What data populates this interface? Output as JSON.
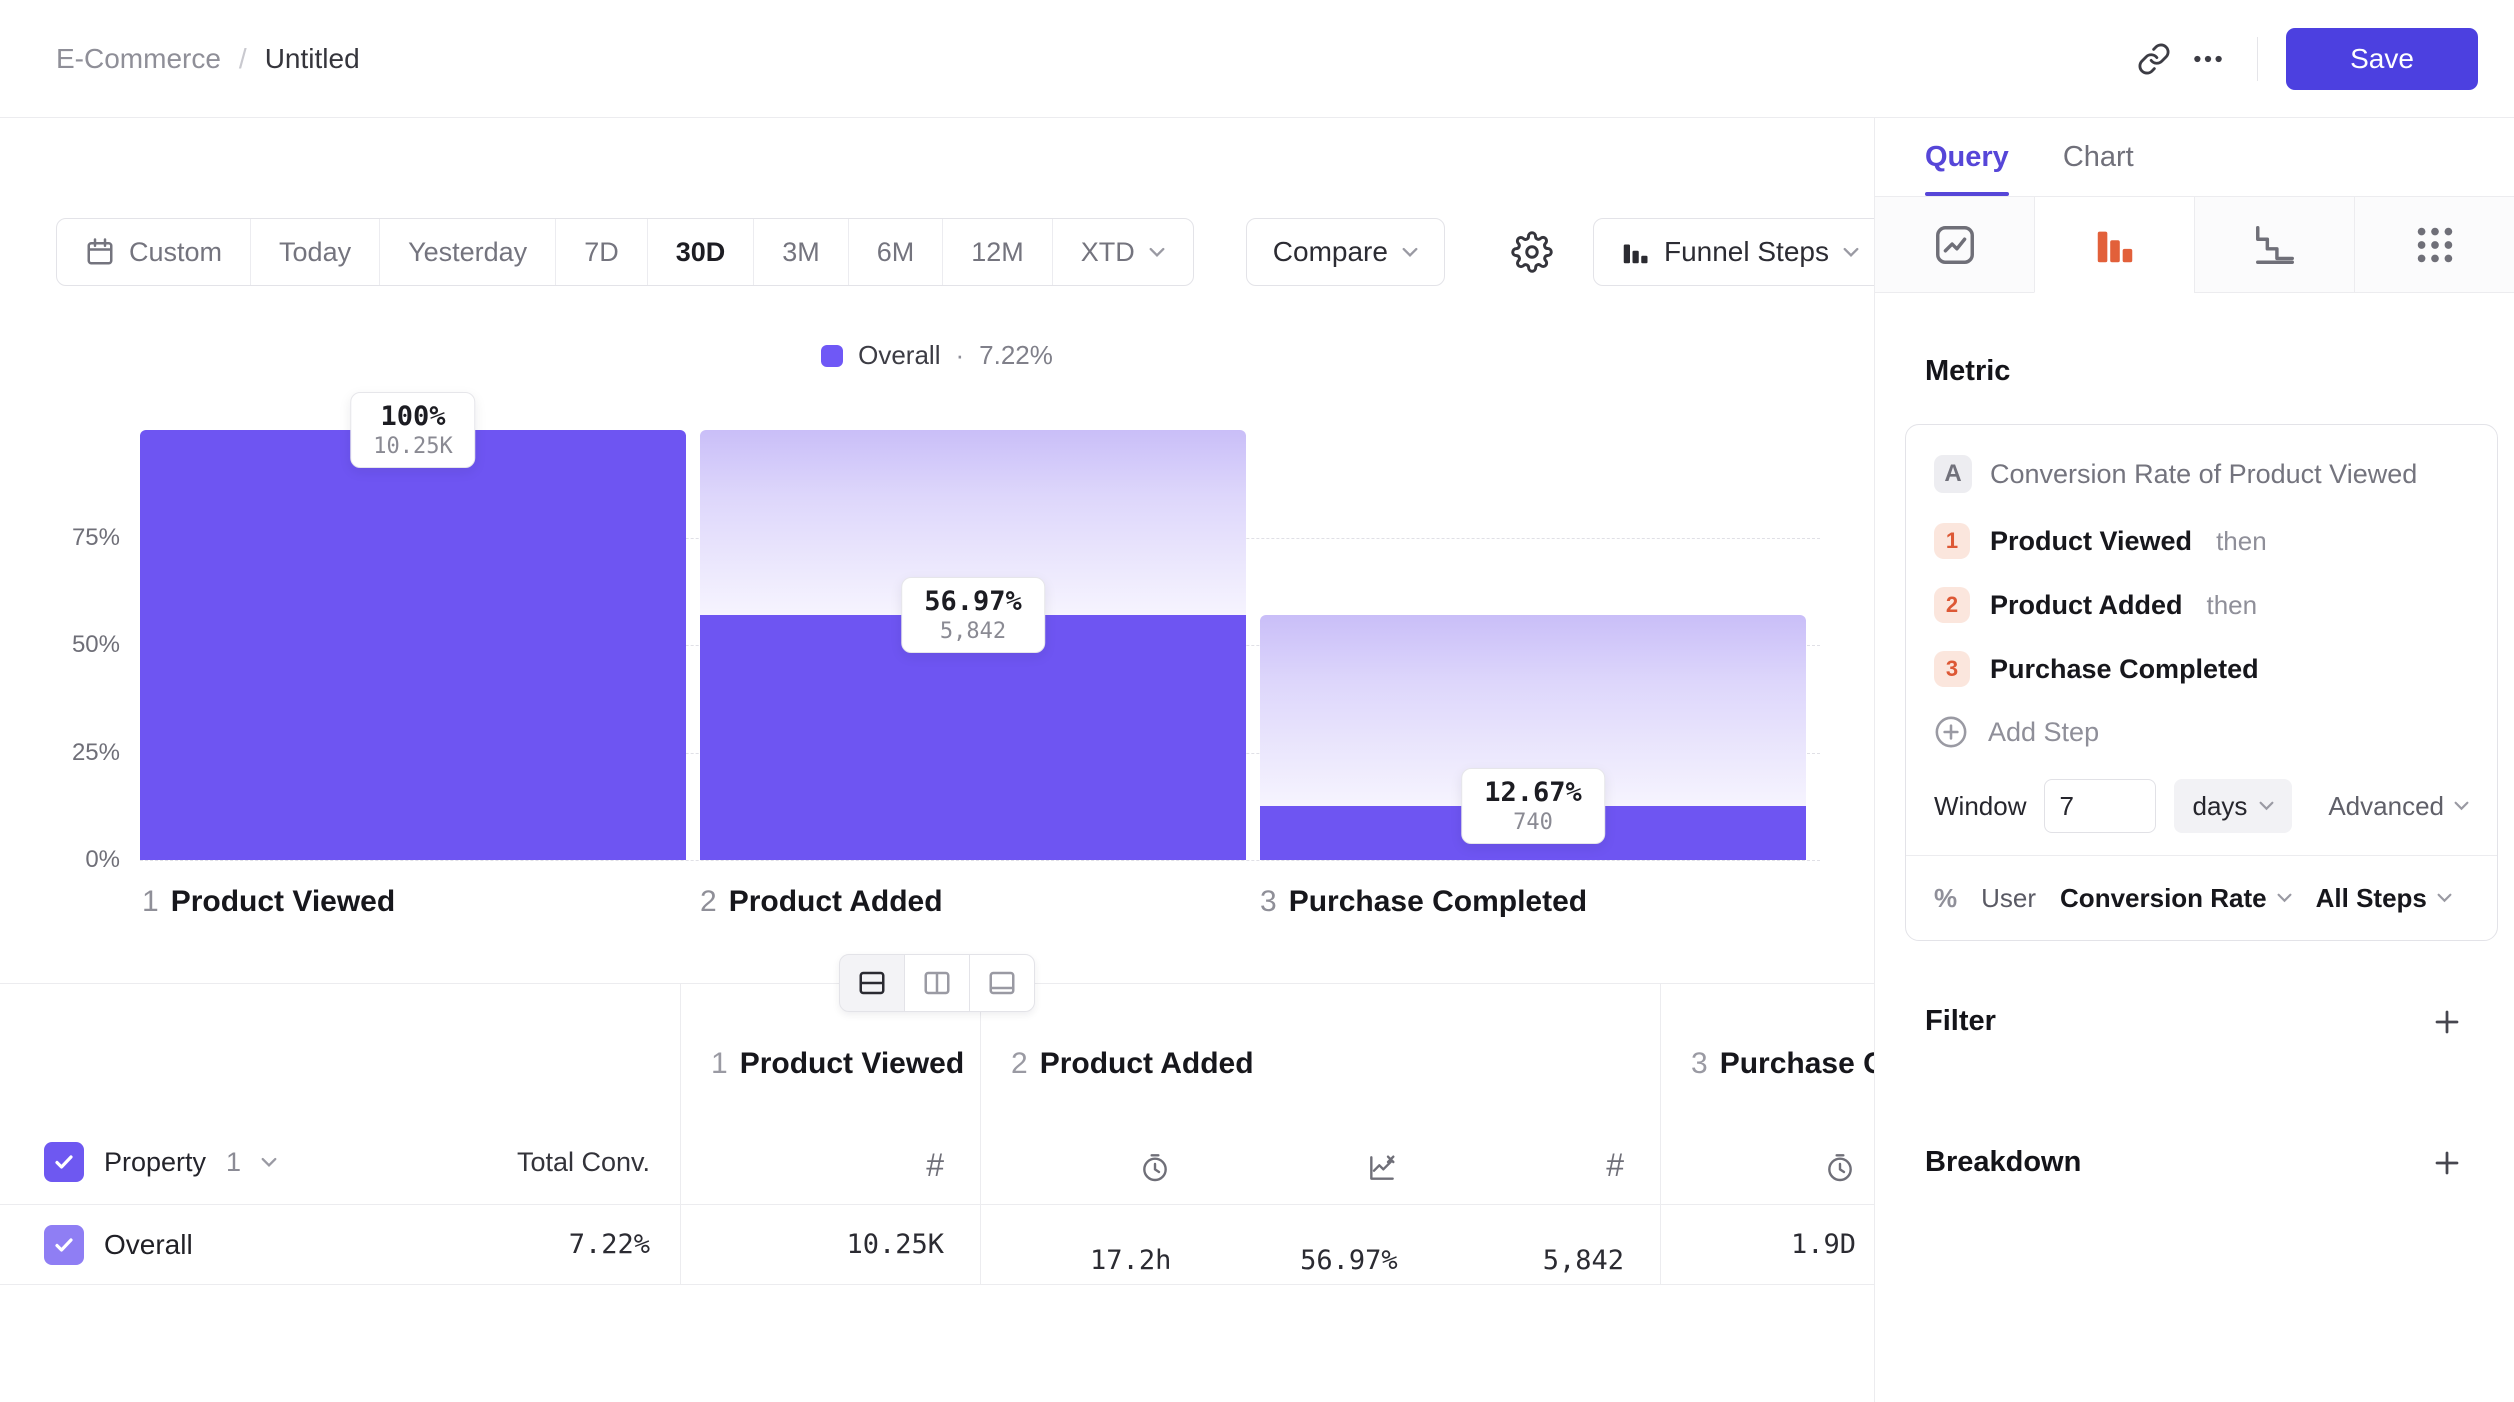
{
  "topbar": {
    "breadcrumb": {
      "parent": "E-Commerce",
      "separator": "/",
      "current": "Untitled"
    },
    "save_label": "Save"
  },
  "toolbar": {
    "ranges": [
      "Custom",
      "Today",
      "Yesterday",
      "7D",
      "30D",
      "3M",
      "6M",
      "12M",
      "XTD"
    ],
    "selected_range": "30D",
    "compare_label": "Compare",
    "view_type_label": "Funnel Steps"
  },
  "legend": {
    "label": "Overall",
    "separator": "·",
    "value": "7.22%",
    "color": "#6f58f6"
  },
  "chart_data": {
    "type": "funnel",
    "categories": [
      "Product Viewed",
      "Product Added",
      "Purchase Completed"
    ],
    "series": [
      {
        "name": "Overall",
        "conversion_pct": [
          100,
          56.97,
          12.67
        ],
        "counts": [
          10250,
          5842,
          740
        ]
      }
    ],
    "bar_labels": [
      {
        "pct": "100%",
        "count": "10.25K"
      },
      {
        "pct": "56.97%",
        "count": "5,842"
      },
      {
        "pct": "12.67%",
        "count": "740"
      }
    ],
    "x_labels": [
      {
        "num": "1",
        "name": "Product Viewed"
      },
      {
        "num": "2",
        "name": "Product Added"
      },
      {
        "num": "3",
        "name": "Purchase Completed"
      }
    ],
    "yticks": [
      "75%",
      "50%",
      "25%",
      "0%"
    ],
    "ylim": [
      0,
      100
    ],
    "grid": "dashed",
    "legend_position": "top-center"
  },
  "table": {
    "property_label": "Property",
    "property_number": "1",
    "total_conv_label": "Total Conv.",
    "step_headers": [
      {
        "num": "1",
        "name": "Product Viewed"
      },
      {
        "num": "2",
        "name": "Product Added"
      },
      {
        "num": "3",
        "name": "Purchase Completed"
      }
    ],
    "metric_icons": [
      "count",
      "time",
      "rate",
      "count",
      "time"
    ],
    "row": {
      "name": "Overall",
      "total_conv": "7.22%",
      "values": [
        "10.25K",
        "17.2h",
        "56.97%",
        "5,842",
        "1.9D"
      ]
    }
  },
  "query_panel": {
    "tabs": [
      {
        "label": "Query"
      },
      {
        "label": "Chart"
      }
    ],
    "active_tab": "Query",
    "chart_type_tabs": [
      "insights",
      "funnels",
      "retention",
      "flows"
    ],
    "active_chart_type": "funnels",
    "metric_label": "Metric",
    "metric_card": {
      "badge": "A",
      "title": "Conversion Rate of Product Viewed",
      "steps": [
        {
          "num": "1",
          "name": "Product Viewed",
          "suffix": "then"
        },
        {
          "num": "2",
          "name": "Product Added",
          "suffix": "then"
        },
        {
          "num": "3",
          "name": "Purchase Completed",
          "suffix": ""
        }
      ],
      "add_step_label": "Add Step",
      "window_label": "Window",
      "window_value": "7",
      "window_unit": "days",
      "advanced_label": "Advanced",
      "counting_prefix": "%",
      "counting_entity": "User",
      "measure": "Conversion Rate",
      "scope": "All Steps"
    },
    "filter_label": "Filter",
    "breakdown_label": "Breakdown"
  },
  "colors": {
    "accent_purple": "#6f58f6",
    "save_button": "#4c40e0",
    "step_orange": "#dd5835",
    "bar_solid": "#6e55f2"
  }
}
